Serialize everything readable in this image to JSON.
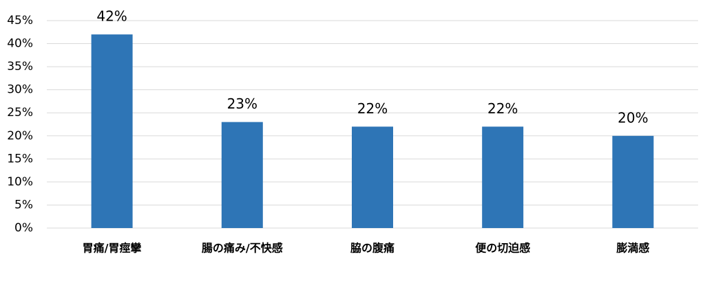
{
  "chart_data": {
    "type": "bar",
    "categories": [
      "胃痛/胃痙攣",
      "腸の痛み/不快感",
      "脇の腹痛",
      "便の切迫感",
      "膨満感"
    ],
    "values": [
      42,
      23,
      22,
      22,
      20
    ],
    "value_labels": [
      "42%",
      "23%",
      "22%",
      "22%",
      "20%"
    ],
    "color": "#2e75b6",
    "ylim": [
      0,
      45
    ],
    "yticks": [
      {
        "value": 0,
        "label": "0%"
      },
      {
        "value": 5,
        "label": "5%"
      },
      {
        "value": 10,
        "label": "10%"
      },
      {
        "value": 15,
        "label": "15%"
      },
      {
        "value": 20,
        "label": "20%"
      },
      {
        "value": 25,
        "label": "25%"
      },
      {
        "value": 30,
        "label": "30%"
      },
      {
        "value": 35,
        "label": "35%"
      },
      {
        "value": 40,
        "label": "40%"
      },
      {
        "value": 45,
        "label": "45%"
      }
    ],
    "grid": true
  }
}
